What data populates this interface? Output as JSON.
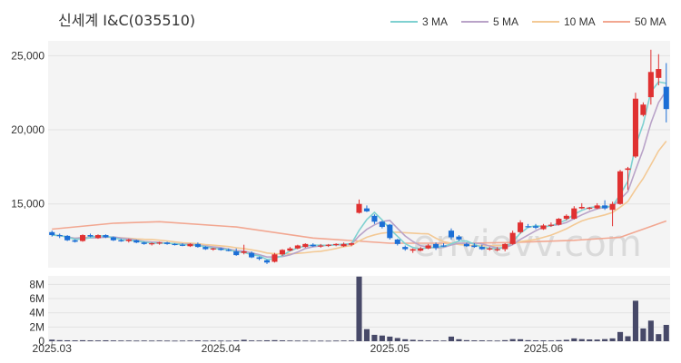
{
  "chart_data": {
    "type": "candlestick",
    "title": "신세계 I&C(035510)",
    "watermark": "envievv.com",
    "x_ticks": [
      {
        "label": "2025.03",
        "index": 0
      },
      {
        "label": "2025.04",
        "index": 22
      },
      {
        "label": "2025.05",
        "index": 44
      },
      {
        "label": "2025.06",
        "index": 64
      }
    ],
    "price_axis": {
      "ticks": [
        15000,
        20000,
        25000
      ],
      "ylim": [
        10700,
        26000
      ]
    },
    "volume_axis": {
      "ticks": [
        0,
        2000000,
        4000000,
        6000000,
        8000000
      ],
      "tick_labels": [
        "0",
        "2M",
        "4M",
        "6M",
        "8M"
      ],
      "ylim": [
        0,
        9200000
      ]
    },
    "legend": [
      {
        "name": "3 MA",
        "color": "#7fd1d1"
      },
      {
        "name": "5 MA",
        "color": "#b9a3c8"
      },
      {
        "name": "10 MA",
        "color": "#f3c995"
      },
      {
        "name": "50 MA",
        "color": "#f2a791"
      }
    ],
    "colors": {
      "up": "#e03131",
      "down": "#1c6fd6",
      "volume": "#474968",
      "plot_bg": "#f4f4f4"
    },
    "candles": [
      [
        13100,
        13200,
        12800,
        12900
      ],
      [
        12900,
        13000,
        12700,
        12850
      ],
      [
        12850,
        12900,
        12500,
        12550
      ],
      [
        12550,
        12600,
        12400,
        12450
      ],
      [
        12500,
        12950,
        12450,
        12900
      ],
      [
        12900,
        13000,
        12750,
        12800
      ],
      [
        12700,
        12950,
        12650,
        12900
      ],
      [
        12900,
        12950,
        12700,
        12750
      ],
      [
        12750,
        12800,
        12500,
        12550
      ],
      [
        12550,
        12650,
        12450,
        12500
      ],
      [
        12500,
        12650,
        12400,
        12600
      ],
      [
        12550,
        12600,
        12350,
        12400
      ],
      [
        12400,
        12450,
        12250,
        12300
      ],
      [
        12300,
        12400,
        12200,
        12350
      ],
      [
        12350,
        12450,
        12250,
        12400
      ],
      [
        12400,
        12450,
        12250,
        12300
      ],
      [
        12300,
        12350,
        12200,
        12250
      ],
      [
        12250,
        12350,
        12150,
        12200
      ],
      [
        12150,
        12350,
        12100,
        12300
      ],
      [
        12300,
        12400,
        12050,
        12100
      ],
      [
        12100,
        12150,
        11900,
        11950
      ],
      [
        11950,
        12050,
        11850,
        12000
      ],
      [
        12000,
        12050,
        11850,
        11900
      ],
      [
        11900,
        12000,
        11800,
        11850
      ],
      [
        11800,
        12000,
        11500,
        11550
      ],
      [
        11700,
        12250,
        11600,
        11800
      ],
      [
        11700,
        11800,
        11350,
        11400
      ],
      [
        11400,
        11450,
        11200,
        11300
      ],
      [
        11200,
        11250,
        10950,
        11050
      ],
      [
        11100,
        11700,
        11050,
        11600
      ],
      [
        11600,
        11950,
        11500,
        11900
      ],
      [
        11850,
        12100,
        11800,
        12000
      ],
      [
        12000,
        12250,
        11950,
        12200
      ],
      [
        12100,
        12350,
        12050,
        12300
      ],
      [
        12250,
        12350,
        12100,
        12150
      ],
      [
        12150,
        12300,
        12050,
        12200
      ],
      [
        12200,
        12300,
        12100,
        12250
      ],
      [
        12250,
        12350,
        12150,
        12300
      ],
      [
        12150,
        12400,
        12100,
        12300
      ],
      [
        12250,
        12400,
        12150,
        12350
      ],
      [
        14400,
        15300,
        14350,
        15000
      ],
      [
        14700,
        14900,
        14450,
        14500
      ],
      [
        14200,
        14300,
        13650,
        13800
      ],
      [
        13800,
        13850,
        13350,
        13450
      ],
      [
        13600,
        13650,
        12600,
        12700
      ],
      [
        12600,
        12650,
        12200,
        12300
      ],
      [
        12100,
        12200,
        11850,
        11950
      ],
      [
        11850,
        12000,
        11700,
        11950
      ],
      [
        11850,
        12100,
        11800,
        12000
      ],
      [
        12000,
        12300,
        11950,
        12200
      ],
      [
        12300,
        12400,
        11900,
        12050
      ],
      [
        12200,
        12350,
        12100,
        12150
      ],
      [
        13200,
        13350,
        12600,
        12750
      ],
      [
        12800,
        12900,
        12500,
        12600
      ],
      [
        12300,
        12400,
        12100,
        12150
      ],
      [
        12200,
        12350,
        12050,
        12100
      ],
      [
        12100,
        12250,
        11900,
        11950
      ],
      [
        11950,
        12100,
        11850,
        12000
      ],
      [
        11950,
        12100,
        11800,
        11950
      ],
      [
        11950,
        12350,
        11800,
        12300
      ],
      [
        12300,
        13200,
        12250,
        13050
      ],
      [
        13100,
        13900,
        13000,
        13750
      ],
      [
        13500,
        13650,
        13400,
        13450
      ],
      [
        13500,
        13650,
        13300,
        13400
      ],
      [
        13300,
        13650,
        13250,
        13550
      ],
      [
        13550,
        13750,
        13450,
        13600
      ],
      [
        13600,
        14050,
        13550,
        14000
      ],
      [
        14000,
        14300,
        13900,
        14200
      ],
      [
        14000,
        14850,
        13950,
        14700
      ],
      [
        14700,
        15050,
        14650,
        14800
      ],
      [
        14700,
        14800,
        14600,
        14750
      ],
      [
        14700,
        15050,
        14650,
        14900
      ],
      [
        14900,
        15250,
        14600,
        14700
      ],
      [
        14600,
        15150,
        13500,
        15000
      ],
      [
        15000,
        17300,
        14950,
        17200
      ],
      [
        17300,
        17500,
        15950,
        17400
      ],
      [
        18200,
        22500,
        18100,
        22100
      ],
      [
        21000,
        21850,
        20900,
        21700
      ],
      [
        22200,
        25400,
        21700,
        23900
      ],
      [
        23500,
        25100,
        23000,
        24100
      ],
      [
        22900,
        24500,
        20500,
        21400
      ]
    ],
    "volume": [
      220000,
      150000,
      130000,
      120000,
      140000,
      120000,
      110000,
      130000,
      110000,
      100000,
      100000,
      90000,
      100000,
      90000,
      100000,
      90000,
      80000,
      90000,
      100000,
      120000,
      90000,
      100000,
      90000,
      80000,
      120000,
      200000,
      110000,
      100000,
      130000,
      150000,
      120000,
      100000,
      90000,
      90000,
      80000,
      80000,
      70000,
      90000,
      100000,
      110000,
      9100000,
      1700000,
      900000,
      800000,
      650000,
      450000,
      280000,
      200000,
      150000,
      120000,
      110000,
      100000,
      650000,
      280000,
      150000,
      120000,
      120000,
      100000,
      90000,
      150000,
      300000,
      280000,
      150000,
      120000,
      120000,
      110000,
      150000,
      200000,
      400000,
      300000,
      250000,
      230000,
      300000,
      400000,
      1300000,
      700000,
      5700000,
      1800000,
      2900000,
      1000000,
      2300000
    ],
    "ma50": [
      [
        0,
        13300
      ],
      [
        8,
        13700
      ],
      [
        14,
        13800
      ],
      [
        24,
        13450
      ],
      [
        34,
        12700
      ],
      [
        44,
        12350
      ],
      [
        54,
        12350
      ],
      [
        60,
        12400
      ],
      [
        68,
        12550
      ],
      [
        74,
        12750
      ],
      [
        80,
        13850
      ]
    ]
  }
}
